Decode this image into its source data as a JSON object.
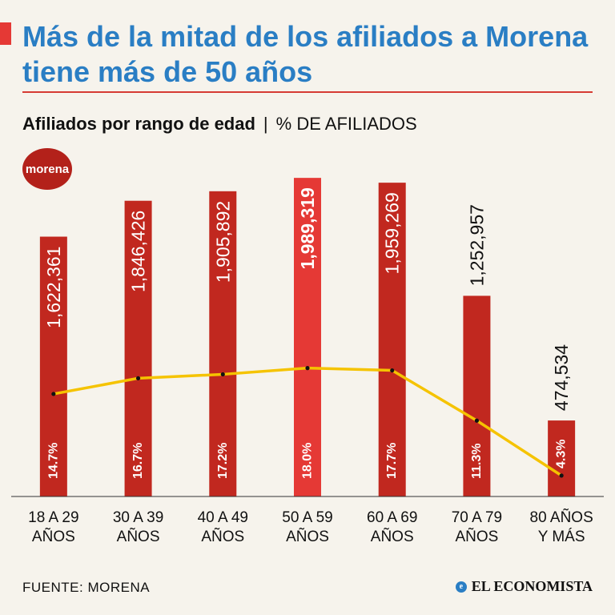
{
  "title": "Más de la mitad de los afiliados a Morena tiene más de 50 años",
  "subtitle": {
    "main": "Afiliados por rango de edad",
    "separator": "|",
    "unit": "% DE AFILIADOS"
  },
  "logo": "morena",
  "source": "FUENTE: MORENA",
  "brand": {
    "mark": "e",
    "name": "EL ECONOMISTA"
  },
  "colors": {
    "bar": "#c1281f",
    "highlight_bar": "#e53935",
    "line": "#f5c300",
    "title": "#2a7ec4"
  },
  "chart_data": {
    "type": "bar",
    "title": "Afiliados por rango de edad",
    "categories": [
      [
        "18 A 29",
        "AÑOS"
      ],
      [
        "30 A 39",
        "AÑOS"
      ],
      [
        "40 A 49",
        "AÑOS"
      ],
      [
        "50 A 59",
        "AÑOS"
      ],
      [
        "60 A 69",
        "AÑOS"
      ],
      [
        "70 A 79",
        "AÑOS"
      ],
      [
        "80 AÑOS",
        "Y MÁS"
      ]
    ],
    "values": [
      1622361,
      1846426,
      1905892,
      1989319,
      1959269,
      1252957,
      474534
    ],
    "value_labels": [
      "1,622,361",
      "1,846,426",
      "1,905,892",
      "1,989,319",
      "1,959,269",
      "1,252,957",
      "474,534"
    ],
    "percentages": [
      14.7,
      16.7,
      17.2,
      18.0,
      17.7,
      11.3,
      4.3
    ],
    "percent_labels": [
      "14.7%",
      "16.7%",
      "17.2%",
      "18.0%",
      "17.7%",
      "11.3%",
      "4.3%"
    ],
    "highlight_index": 3,
    "ylim": [
      0,
      2000000
    ],
    "xlabel": "",
    "ylabel": "% DE AFILIADOS"
  }
}
